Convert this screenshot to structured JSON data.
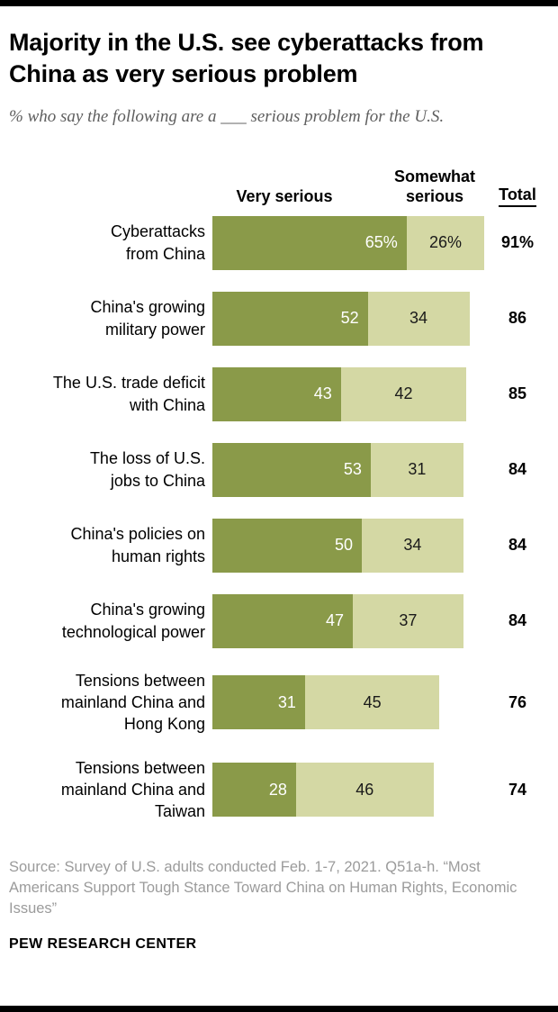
{
  "title": "Majority in the U.S. see cyberattacks from China as very serious problem",
  "subtitle": "% who say the following are a ___ serious problem for the U.S.",
  "colors": {
    "very_serious": "#8a9a49",
    "somewhat_serious": "#d4d8a4",
    "rule": "#000000",
    "source_text": "#9b9b9b"
  },
  "chart_data": {
    "type": "bar",
    "orientation": "horizontal",
    "stacked": true,
    "xlim": [
      0,
      100
    ],
    "legend_position": "top",
    "headers": {
      "very": "Very serious",
      "somewhat": "Somewhat serious",
      "total": "Total"
    },
    "categories": [
      "Cyberattacks from China",
      "China's growing military power",
      "The U.S. trade deficit with China",
      "The loss of U.S. jobs to China",
      "China's policies on human rights",
      "China's growing technological power",
      "Tensions between mainland China and Hong Kong",
      "Tensions between mainland China and Taiwan"
    ],
    "series": [
      {
        "name": "Very serious",
        "values": [
          65,
          52,
          43,
          53,
          50,
          47,
          31,
          28
        ]
      },
      {
        "name": "Somewhat serious",
        "values": [
          26,
          34,
          42,
          31,
          34,
          37,
          45,
          46
        ]
      }
    ],
    "totals": [
      91,
      86,
      85,
      84,
      84,
      84,
      76,
      74
    ],
    "rows": [
      {
        "label": "Cyberattacks\nfrom China",
        "very": 65,
        "very_label": "65%",
        "somewhat": 26,
        "somewhat_label": "26%",
        "total_label": "91%"
      },
      {
        "label": "China's growing\nmilitary power",
        "very": 52,
        "very_label": "52",
        "somewhat": 34,
        "somewhat_label": "34",
        "total_label": "86"
      },
      {
        "label": "The U.S. trade deficit\nwith China",
        "very": 43,
        "very_label": "43",
        "somewhat": 42,
        "somewhat_label": "42",
        "total_label": "85"
      },
      {
        "label": "The loss of U.S.\njobs to China",
        "very": 53,
        "very_label": "53",
        "somewhat": 31,
        "somewhat_label": "31",
        "total_label": "84"
      },
      {
        "label": "China's policies on\nhuman rights",
        "very": 50,
        "very_label": "50",
        "somewhat": 34,
        "somewhat_label": "34",
        "total_label": "84"
      },
      {
        "label": "China's growing\ntechnological power",
        "very": 47,
        "very_label": "47",
        "somewhat": 37,
        "somewhat_label": "37",
        "total_label": "84"
      },
      {
        "label": "Tensions between\nmainland China and\nHong Kong",
        "very": 31,
        "very_label": "31",
        "somewhat": 45,
        "somewhat_label": "45",
        "total_label": "76"
      },
      {
        "label": "Tensions between\nmainland China and\nTaiwan",
        "very": 28,
        "very_label": "28",
        "somewhat": 46,
        "somewhat_label": "46",
        "total_label": "74"
      }
    ]
  },
  "source": "Source: Survey of U.S. adults conducted Feb. 1-7, 2021. Q51a-h. “Most Americans Support Tough Stance Toward China on Human Rights, Economic Issues”",
  "footer": "PEW RESEARCH CENTER"
}
